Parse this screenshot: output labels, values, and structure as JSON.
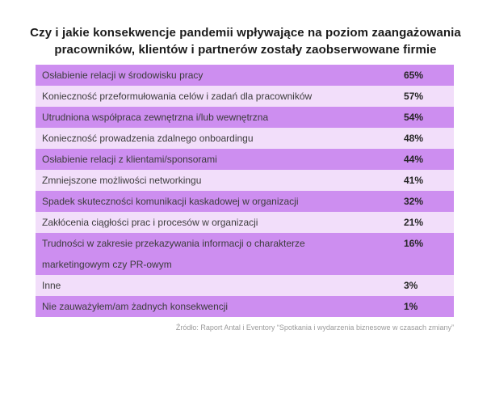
{
  "title": "Czy i jakie konsekwencje pandemii wpływające na poziom zaangażowania\npracowników, klientów i partnerów zostały zaobserwowane firmie",
  "rows": [
    {
      "label": "Osłabienie relacji w środowisku pracy",
      "value": "65%"
    },
    {
      "label": "Konieczność przeformułowania celów i zadań dla pracowników",
      "value": "57%"
    },
    {
      "label": "Utrudniona współpraca zewnętrzna i/lub wewnętrzna",
      "value": "54%"
    },
    {
      "label": "Konieczność prowadzenia zdalnego onboardingu",
      "value": "48%"
    },
    {
      "label": "Osłabienie relacji z klientami/sponsorami",
      "value": "44%"
    },
    {
      "label": "Zmniejszone możliwości networkingu",
      "value": "41%"
    },
    {
      "label": "Spadek skuteczności komunikacji kaskadowej w organizacji",
      "value": "32%"
    },
    {
      "label": "Zakłócenia ciągłości prac i procesów w organizacji",
      "value": "21%"
    },
    {
      "label": "Trudności w zakresie przekazywania informacji o charakterze\nmarketingowym czy PR-owym",
      "value": "16%"
    },
    {
      "label": "Inne",
      "value": "3%"
    },
    {
      "label": "Nie zauważyłem/am żadnych konsekwencji",
      "value": "1%"
    }
  ],
  "source": "Źródło: Raport Antal i Eventory “Spotkania i wydarzenia biznesowe w czasach zmiany”",
  "colors": {
    "row_dark": "#cd8ef0",
    "row_light": "#f2defa",
    "title_text": "#1b1b1b",
    "label_text": "#3c3c3c",
    "value_text": "#262626",
    "source_text": "#9b9b9b",
    "background": "#ffffff"
  },
  "chart_data": {
    "type": "table",
    "title": "Czy i jakie konsekwencje pandemii wpływające na poziom zaangażowania pracowników, klientów i partnerów zostały zaobserwowane firmie",
    "categories": [
      "Osłabienie relacji w środowisku pracy",
      "Konieczność przeformułowania celów i zadań dla pracowników",
      "Utrudniona współpraca zewnętrzna i/lub wewnętrzna",
      "Konieczność prowadzenia zdalnego onboardingu",
      "Osłabienie relacji z klientami/sponsorami",
      "Zmniejszone możliwości networkingu",
      "Spadek skuteczności komunikacji kaskadowej w organizacji",
      "Zakłócenia ciągłości prac i procesów w organizacji",
      "Trudności w zakresie przekazywania informacji o charakterze marketingowym czy PR-owym",
      "Inne",
      "Nie zauważyłem/am żadnych konsekwencji"
    ],
    "values": [
      65,
      57,
      54,
      48,
      44,
      41,
      32,
      21,
      16,
      3,
      1
    ],
    "unit": "%",
    "sort_order": "descending",
    "legend": "none",
    "source": "Źródło: Raport Antal i Eventory “Spotkania i wydarzenia biznesowe w czasach zmiany”"
  }
}
